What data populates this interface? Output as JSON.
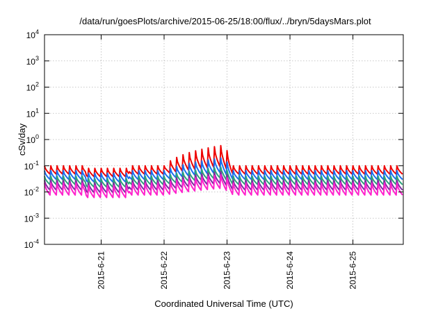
{
  "chart_data": {
    "type": "line",
    "title": "/data/run/goesPlots/archive/2015-06-25/18:00/flux/../bryn/5daysMars.plot",
    "xlabel": "Coordinated Universal Time (UTC)",
    "ylabel": "cSv/day",
    "yscale": "log",
    "ylim": [
      0.0001,
      10000
    ],
    "xlim_days": [
      -0.9,
      4.8
    ],
    "grid": true,
    "y_ticks": [
      {
        "value": 0.0001,
        "base": "10",
        "exp": "-4"
      },
      {
        "value": 0.001,
        "base": "10",
        "exp": "-3"
      },
      {
        "value": 0.01,
        "base": "10",
        "exp": "-2"
      },
      {
        "value": 0.1,
        "base": "10",
        "exp": "-1"
      },
      {
        "value": 1,
        "base": "10",
        "exp": "0"
      },
      {
        "value": 10,
        "base": "10",
        "exp": "1"
      },
      {
        "value": 100,
        "base": "10",
        "exp": "2"
      },
      {
        "value": 1000,
        "base": "10",
        "exp": "3"
      },
      {
        "value": 10000,
        "base": "10",
        "exp": "4"
      }
    ],
    "x_ticks": [
      {
        "value": 0,
        "label": "2015-6-21"
      },
      {
        "value": 1,
        "label": "2015-6-22"
      },
      {
        "value": 2,
        "label": "2015-6-23"
      },
      {
        "value": 3,
        "label": "2015-6-24"
      },
      {
        "value": 4,
        "label": "2015-6-25"
      }
    ],
    "sawtooth_period_days": 0.1,
    "series": [
      {
        "name": "series-red",
        "color": "#ee0000",
        "peak": 0.1,
        "trough": 0.045,
        "event_peak": 0.6
      },
      {
        "name": "series-blue",
        "color": "#1a6eee",
        "peak": 0.065,
        "trough": 0.028,
        "event_peak": 0.2
      },
      {
        "name": "series-teal",
        "color": "#2aa37a",
        "peak": 0.04,
        "trough": 0.018,
        "event_peak": 0.09
      },
      {
        "name": "series-purple",
        "color": "#7b2aa0",
        "peak": 0.028,
        "trough": 0.011,
        "event_peak": 0.06
      },
      {
        "name": "series-magenta",
        "color": "#ff22cc",
        "peak": 0.022,
        "trough": 0.007,
        "event_peak": 0.045
      }
    ]
  }
}
